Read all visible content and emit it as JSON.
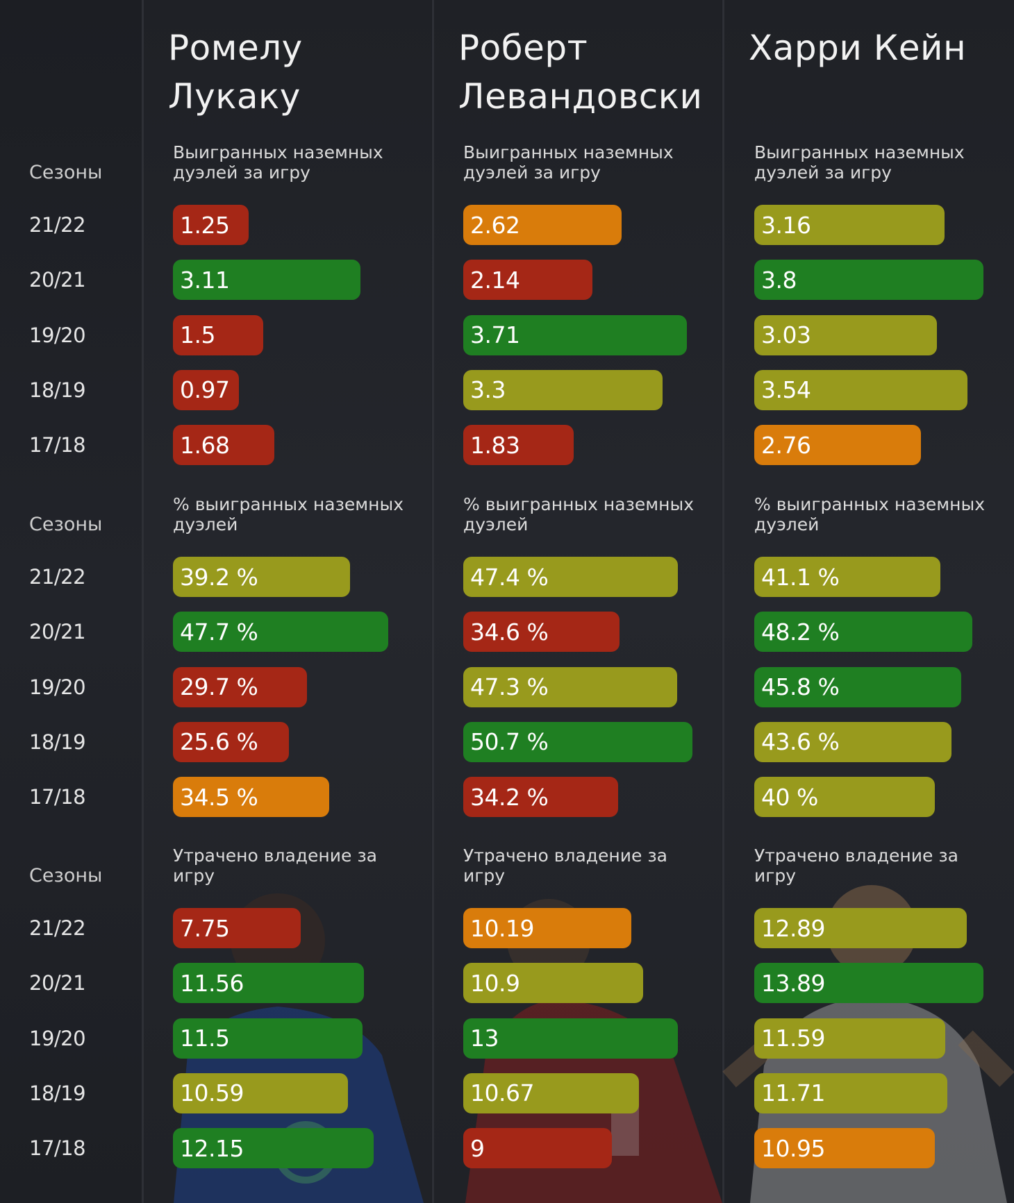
{
  "labels": {
    "seasons": "Сезоны"
  },
  "players": [
    {
      "name_line1": "Ромелу",
      "name_line2": "Лукаку"
    },
    {
      "name_line1": "Роберт",
      "name_line2": "Левандовски"
    },
    {
      "name_line1": "Харри Кейн",
      "name_line2": ""
    }
  ],
  "colors": {
    "red": "#a52716",
    "orange": "#d97c0b",
    "olive": "#989a1d",
    "green": "#1f7f22"
  },
  "chart_data": {
    "type": "bar",
    "seasons": [
      "21/22",
      "20/21",
      "19/20",
      "18/19",
      "17/18"
    ],
    "metrics": [
      {
        "title": "Выигранных наземных дуэлей за игру",
        "series": [
          {
            "player": "Ромелу Лукаку",
            "labels": [
              "1.25",
              "3.11",
              "1.5",
              "0.97",
              "1.68"
            ],
            "values": [
              1.25,
              3.11,
              1.5,
              0.97,
              1.68
            ],
            "colors": [
              "red",
              "green",
              "red",
              "red",
              "red"
            ]
          },
          {
            "player": "Роберт Левандовски",
            "labels": [
              "2.62",
              "2.14",
              "3.71",
              "3.3",
              "1.83"
            ],
            "values": [
              2.62,
              2.14,
              3.71,
              3.3,
              1.83
            ],
            "colors": [
              "orange",
              "red",
              "green",
              "olive",
              "red"
            ]
          },
          {
            "player": "Харри Кейн",
            "labels": [
              "3.16",
              "3.8",
              "3.03",
              "3.54",
              "2.76"
            ],
            "values": [
              3.16,
              3.8,
              3.03,
              3.54,
              2.76
            ],
            "colors": [
              "olive",
              "green",
              "olive",
              "olive",
              "orange"
            ]
          }
        ]
      },
      {
        "title": "% выигранных наземных дуэлей",
        "series": [
          {
            "player": "Ромелу Лукаку",
            "labels": [
              "39.2 %",
              "47.7 %",
              "29.7 %",
              "25.6 %",
              "34.5 %"
            ],
            "values": [
              39.2,
              47.7,
              29.7,
              25.6,
              34.5
            ],
            "colors": [
              "olive",
              "green",
              "red",
              "red",
              "orange"
            ]
          },
          {
            "player": "Роберт Левандовски",
            "labels": [
              "47.4 %",
              "34.6 %",
              "47.3 %",
              "50.7 %",
              "34.2 %"
            ],
            "values": [
              47.4,
              34.6,
              47.3,
              50.7,
              34.2
            ],
            "colors": [
              "olive",
              "red",
              "olive",
              "green",
              "red"
            ]
          },
          {
            "player": "Харри Кейн",
            "labels": [
              "41.1 %",
              "48.2 %",
              "45.8 %",
              "43.6 %",
              "40 %"
            ],
            "values": [
              41.1,
              48.2,
              45.8,
              43.6,
              40
            ],
            "colors": [
              "olive",
              "green",
              "green",
              "olive",
              "olive"
            ]
          }
        ]
      },
      {
        "title": "Утрачено владение за игру",
        "series": [
          {
            "player": "Ромелу Лукаку",
            "labels": [
              "7.75",
              "11.56",
              "11.5",
              "10.59",
              "12.15"
            ],
            "values": [
              7.75,
              11.56,
              11.5,
              10.59,
              12.15
            ],
            "colors": [
              "red",
              "green",
              "green",
              "olive",
              "green"
            ]
          },
          {
            "player": "Роберт Левандовски",
            "labels": [
              "10.19",
              "10.9",
              "13",
              "10.67",
              "9"
            ],
            "values": [
              10.19,
              10.9,
              13,
              10.67,
              9
            ],
            "colors": [
              "orange",
              "olive",
              "green",
              "olive",
              "red"
            ]
          },
          {
            "player": "Харри Кейн",
            "labels": [
              "12.89",
              "13.89",
              "11.59",
              "11.71",
              "10.95"
            ],
            "values": [
              12.89,
              13.89,
              11.59,
              11.71,
              10.95
            ],
            "colors": [
              "olive",
              "green",
              "olive",
              "olive",
              "orange"
            ]
          }
        ]
      }
    ]
  }
}
